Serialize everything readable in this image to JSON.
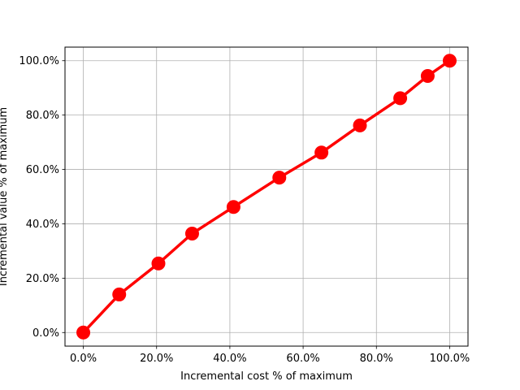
{
  "chart_data": {
    "type": "line",
    "title": "",
    "xlabel": "Incremental cost % of maximum",
    "ylabel": "Incremental value % of maximum",
    "xlim": [
      -0.05,
      1.05
    ],
    "ylim": [
      -0.05,
      1.05
    ],
    "xticks": [
      0.0,
      0.2,
      0.4,
      0.6,
      0.8,
      1.0
    ],
    "yticks": [
      0.0,
      0.2,
      0.4,
      0.6,
      0.8,
      1.0
    ],
    "xtick_labels": [
      "0.0%",
      "20.0%",
      "40.0%",
      "60.0%",
      "80.0%",
      "100.0%"
    ],
    "ytick_labels": [
      "0.0%",
      "20.0%",
      "40.0%",
      "60.0%",
      "80.0%",
      "100.0%"
    ],
    "grid": true,
    "series": [
      {
        "x": [
          0.0,
          0.098,
          0.205,
          0.297,
          0.41,
          0.535,
          0.65,
          0.755,
          0.865,
          0.94,
          1.0
        ],
        "y": [
          0.0,
          0.14,
          0.254,
          0.364,
          0.462,
          0.57,
          0.662,
          0.762,
          0.862,
          0.944,
          1.0
        ],
        "color": "#ff0000",
        "marker": "circle"
      }
    ]
  }
}
